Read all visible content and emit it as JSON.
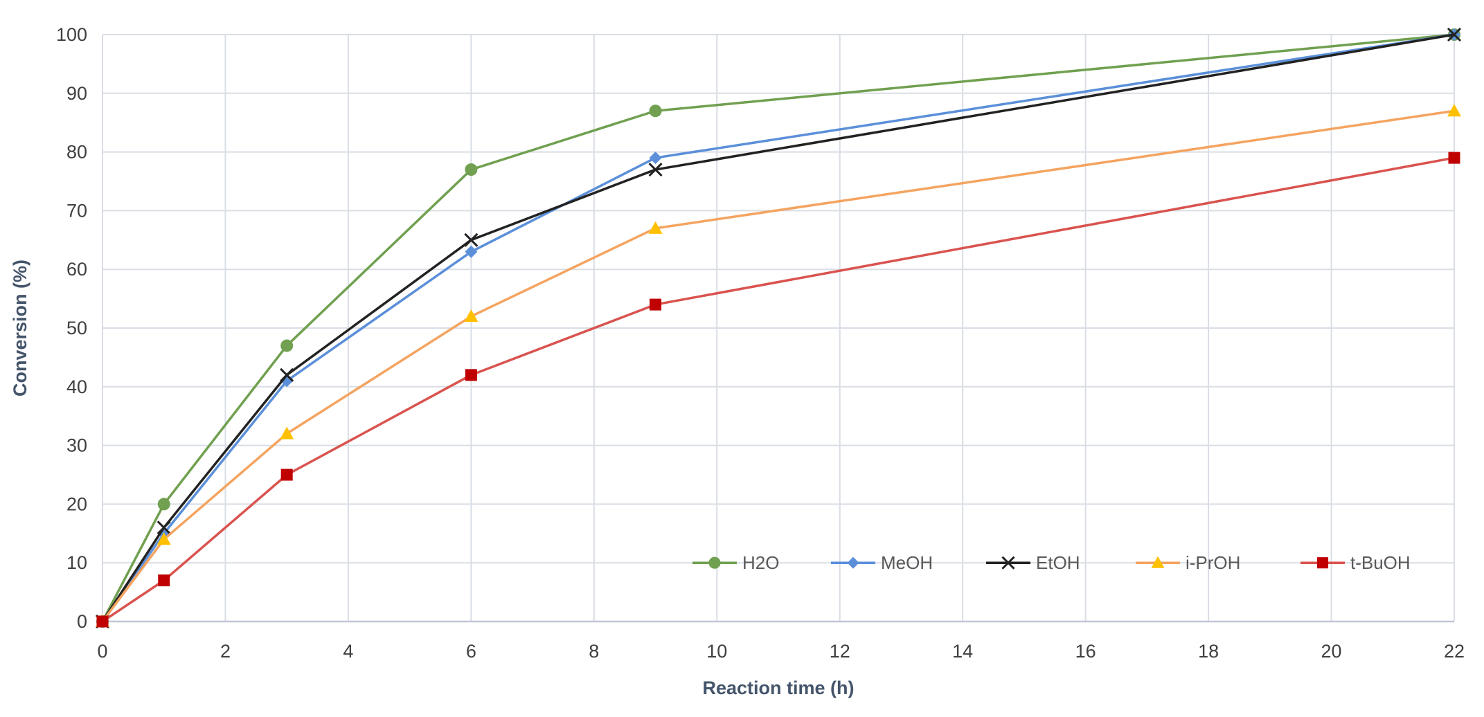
{
  "chart_data": {
    "type": "line",
    "title": "",
    "xlabel": "Reaction time (h)",
    "ylabel": "Conversion  (%)",
    "xlim": [
      0,
      22
    ],
    "ylim": [
      0,
      100
    ],
    "x_ticks": [
      0,
      2,
      4,
      6,
      8,
      10,
      12,
      14,
      16,
      18,
      20,
      22
    ],
    "y_ticks": [
      0,
      10,
      20,
      30,
      40,
      50,
      60,
      70,
      80,
      90,
      100
    ],
    "grid": true,
    "legend_position": "inside-bottom-right",
    "x": [
      0,
      1,
      3,
      6,
      9,
      22
    ],
    "series": [
      {
        "name": "H2O",
        "values": [
          0,
          20,
          47,
          77,
          87,
          100
        ],
        "color": "#70a050",
        "marker": "circle"
      },
      {
        "name": "MeOH",
        "values": [
          0,
          15,
          41,
          63,
          79,
          100
        ],
        "color": "#5b8fd9",
        "marker": "diamond"
      },
      {
        "name": "EtOH",
        "values": [
          0,
          16,
          42,
          65,
          77,
          100
        ],
        "color": "#222222",
        "marker": "x"
      },
      {
        "name": "i-PrOH",
        "values": [
          0,
          14,
          32,
          52,
          67,
          87
        ],
        "color": "#f4a460",
        "marker_color": "#ffc000",
        "marker": "triangle"
      },
      {
        "name": "t-BuOH",
        "values": [
          0,
          7,
          25,
          42,
          54,
          79
        ],
        "color": "#d9534f",
        "marker_color": "#c00000",
        "marker": "square"
      }
    ]
  }
}
